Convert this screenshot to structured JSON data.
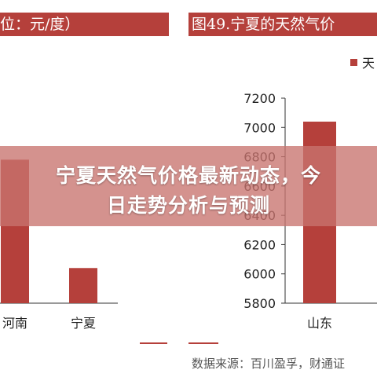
{
  "left_chart": {
    "title": "位：元/度）",
    "source": ""
  },
  "right_chart": {
    "title": "图49.宁夏的天然气价",
    "legend_label": "天",
    "source": "数据来源：百川盈孚，财通证"
  },
  "banner": {
    "line1": "宁夏天然气价格最新动态，今",
    "line2": "日走势分析与预测"
  },
  "colors": {
    "bar": "#b5403b",
    "title_bg": "#b5403b",
    "banner_bg": "#c8736e"
  },
  "chart_data": [
    {
      "type": "bar",
      "title": "位：元/度）",
      "categories": [
        "河南",
        "宁夏"
      ],
      "values": [
        6780,
        6040
      ],
      "ylim": [
        5800,
        7200
      ],
      "grid": false
    },
    {
      "type": "bar",
      "title": "图49.宁夏的天然气价",
      "categories": [
        "山东"
      ],
      "series": [
        {
          "name": "天",
          "values": [
            7040
          ]
        }
      ],
      "yticks": [
        5800,
        6000,
        6200,
        6400,
        6600,
        6800,
        7000,
        7200
      ],
      "ylim": [
        5800,
        7200
      ],
      "legend": "top-right",
      "grid": false
    }
  ]
}
